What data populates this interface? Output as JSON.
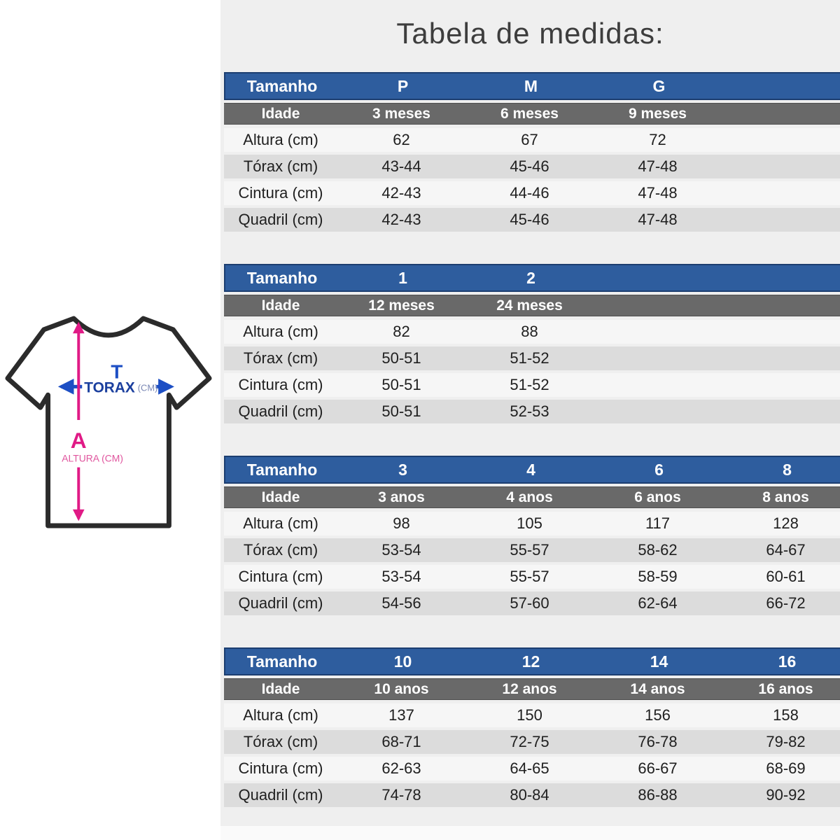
{
  "page": {
    "title": "Tabela de medidas:"
  },
  "diagram": {
    "chest_letter": "T",
    "chest_label": "TORAX",
    "chest_unit": "(CM)",
    "height_letter": "A",
    "height_label": "ALTURA (CM)"
  },
  "colors": {
    "header_blue": "#2e5d9e",
    "header_blue_border": "#1c3e70",
    "age_gray": "#696969",
    "stripe_gray": "#dcdcdc",
    "stripe_light": "#f6f6f6",
    "panel_bg": "#efefef",
    "chest_arrow_blue": "#1d4fc4",
    "height_arrow_pink": "#e01a86"
  },
  "tables": [
    {
      "size_header": "Tamanho",
      "sizes": [
        "P",
        "M",
        "G"
      ],
      "age_label": "Idade",
      "ages": [
        "3 meses",
        "6 meses",
        "9 meses"
      ],
      "rows": [
        {
          "label": "Altura (cm)",
          "values": [
            "62",
            "67",
            "72"
          ]
        },
        {
          "label": "Tórax (cm)",
          "values": [
            "43-44",
            "45-46",
            "47-48"
          ]
        },
        {
          "label": "Cintura (cm)",
          "values": [
            "42-43",
            "44-46",
            "47-48"
          ]
        },
        {
          "label": "Quadril (cm)",
          "values": [
            "42-43",
            "45-46",
            "47-48"
          ]
        }
      ]
    },
    {
      "size_header": "Tamanho",
      "sizes": [
        "1",
        "2"
      ],
      "age_label": "Idade",
      "ages": [
        "12 meses",
        "24 meses"
      ],
      "rows": [
        {
          "label": "Altura (cm)",
          "values": [
            "82",
            "88"
          ]
        },
        {
          "label": "Tórax (cm)",
          "values": [
            "50-51",
            "51-52"
          ]
        },
        {
          "label": "Cintura (cm)",
          "values": [
            "50-51",
            "51-52"
          ]
        },
        {
          "label": "Quadril (cm)",
          "values": [
            "50-51",
            "52-53"
          ]
        }
      ]
    },
    {
      "size_header": "Tamanho",
      "sizes": [
        "3",
        "4",
        "6",
        "8"
      ],
      "age_label": "Idade",
      "ages": [
        "3 anos",
        "4 anos",
        "6 anos",
        "8 anos"
      ],
      "rows": [
        {
          "label": "Altura (cm)",
          "values": [
            "98",
            "105",
            "117",
            "128"
          ]
        },
        {
          "label": "Tórax (cm)",
          "values": [
            "53-54",
            "55-57",
            "58-62",
            "64-67"
          ]
        },
        {
          "label": "Cintura (cm)",
          "values": [
            "53-54",
            "55-57",
            "58-59",
            "60-61"
          ]
        },
        {
          "label": "Quadril (cm)",
          "values": [
            "54-56",
            "57-60",
            "62-64",
            "66-72"
          ]
        }
      ]
    },
    {
      "size_header": "Tamanho",
      "sizes": [
        "10",
        "12",
        "14",
        "16"
      ],
      "age_label": "Idade",
      "ages": [
        "10 anos",
        "12 anos",
        "14 anos",
        "16 anos"
      ],
      "rows": [
        {
          "label": "Altura (cm)",
          "values": [
            "137",
            "150",
            "156",
            "158"
          ]
        },
        {
          "label": "Tórax (cm)",
          "values": [
            "68-71",
            "72-75",
            "76-78",
            "79-82"
          ]
        },
        {
          "label": "Cintura (cm)",
          "values": [
            "62-63",
            "64-65",
            "66-67",
            "68-69"
          ]
        },
        {
          "label": "Quadril (cm)",
          "values": [
            "74-78",
            "80-84",
            "86-88",
            "90-92"
          ]
        }
      ]
    }
  ]
}
